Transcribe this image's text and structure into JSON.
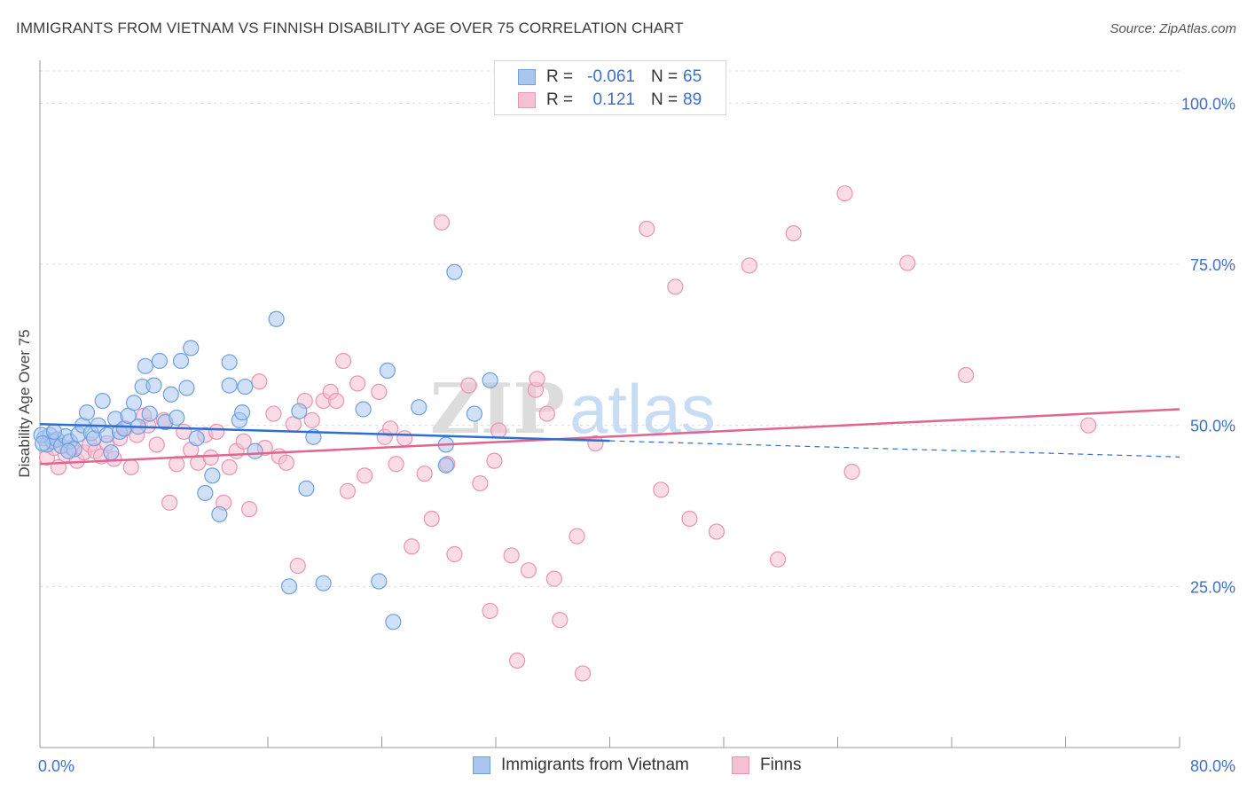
{
  "header": {
    "title": "IMMIGRANTS FROM VIETNAM VS FINNISH DISABILITY AGE OVER 75 CORRELATION CHART",
    "source": "Source: ZipAtlas.com"
  },
  "watermark": {
    "zip": "ZIP",
    "atlas": "atlas"
  },
  "stats": [
    {
      "r_label": "R =",
      "r_value": "-0.061",
      "n_label": "N =",
      "n_value": "65"
    },
    {
      "r_label": "R =",
      "r_value": "0.121",
      "n_label": "N =",
      "n_value": "89"
    }
  ],
  "legend": {
    "series_a": "Immigrants from Vietnam",
    "series_b": "Finns"
  },
  "colors": {
    "blue_fill": "#a9c6ee",
    "blue_stroke": "#6f9fe0",
    "blue_line": "#2f6fd0",
    "pink_fill": "#f6bfd2",
    "pink_stroke": "#ea93b2",
    "pink_line": "#e0668f",
    "tick_text": "#3d6fc9",
    "grid": "#dcdcdc"
  },
  "chart_data": {
    "type": "scatter",
    "title": "IMMIGRANTS FROM VIETNAM VS FINNISH DISABILITY AGE OVER 75 CORRELATION CHART",
    "xlabel": "",
    "ylabel": "Disability Age Over 75",
    "xlim": [
      0,
      80
    ],
    "ylim": [
      0,
      105
    ],
    "x_tick_labels": [
      "0.0%",
      "80.0%"
    ],
    "y_ticks": [
      25,
      50,
      75,
      100
    ],
    "y_tick_labels": [
      "25.0%",
      "50.0%",
      "75.0%",
      "100.0%"
    ],
    "series": [
      {
        "name": "Immigrants from Vietnam",
        "r": -0.061,
        "n": 65,
        "trend": {
          "x": [
            0,
            40
          ],
          "y": [
            50.2,
            47.6
          ],
          "dashed_to": [
            80,
            45.1
          ]
        },
        "points": [
          [
            0.3,
            48.0
          ],
          [
            0.5,
            47.0
          ],
          [
            0.7,
            48.5
          ],
          [
            0.9,
            47.5
          ],
          [
            1.2,
            47.8
          ],
          [
            1.5,
            46.8
          ],
          [
            1.8,
            48.3
          ],
          [
            2.1,
            47.5
          ],
          [
            2.4,
            46.3
          ],
          [
            2.7,
            48.6
          ],
          [
            3.0,
            50.0
          ],
          [
            3.3,
            52.0
          ],
          [
            3.6,
            48.8
          ],
          [
            3.8,
            48.0
          ],
          [
            4.1,
            50.0
          ],
          [
            4.4,
            53.8
          ],
          [
            4.7,
            48.5
          ],
          [
            5.0,
            45.8
          ],
          [
            5.3,
            51.0
          ],
          [
            5.6,
            49.0
          ],
          [
            5.9,
            49.5
          ],
          [
            6.2,
            51.5
          ],
          [
            6.6,
            53.5
          ],
          [
            6.9,
            49.8
          ],
          [
            7.2,
            56.0
          ],
          [
            7.4,
            59.2
          ],
          [
            7.7,
            51.8
          ],
          [
            8.0,
            56.2
          ],
          [
            8.4,
            60.0
          ],
          [
            8.8,
            50.5
          ],
          [
            9.2,
            54.8
          ],
          [
            9.6,
            51.2
          ],
          [
            9.9,
            60.0
          ],
          [
            10.3,
            55.8
          ],
          [
            10.6,
            62.0
          ],
          [
            11.0,
            48.0
          ],
          [
            11.6,
            39.5
          ],
          [
            12.1,
            42.2
          ],
          [
            12.6,
            36.2
          ],
          [
            13.3,
            59.8
          ],
          [
            13.3,
            56.2
          ],
          [
            14.0,
            50.8
          ],
          [
            14.2,
            52.0
          ],
          [
            14.4,
            56.0
          ],
          [
            15.1,
            46.0
          ],
          [
            16.6,
            66.5
          ],
          [
            17.5,
            25.0
          ],
          [
            18.2,
            52.2
          ],
          [
            18.7,
            40.2
          ],
          [
            19.2,
            48.2
          ],
          [
            19.9,
            25.5
          ],
          [
            22.7,
            52.5
          ],
          [
            23.8,
            25.8
          ],
          [
            24.4,
            58.5
          ],
          [
            24.8,
            19.5
          ],
          [
            26.6,
            52.8
          ],
          [
            28.5,
            47.0
          ],
          [
            28.5,
            43.8
          ],
          [
            29.1,
            73.8
          ],
          [
            30.5,
            51.8
          ],
          [
            31.6,
            57.0
          ],
          [
            0.1,
            48.5
          ],
          [
            0.2,
            47.2
          ],
          [
            1.0,
            49.0
          ],
          [
            2.0,
            46.0
          ]
        ]
      },
      {
        "name": "Finns",
        "r": 0.121,
        "n": 89,
        "trend": {
          "x": [
            0,
            80
          ],
          "y": [
            44.0,
            52.5
          ]
        },
        "points": [
          [
            0.5,
            45.0
          ],
          [
            1.0,
            46.5
          ],
          [
            1.3,
            43.5
          ],
          [
            1.8,
            45.5
          ],
          [
            2.2,
            46.5
          ],
          [
            2.6,
            44.5
          ],
          [
            3.1,
            45.8
          ],
          [
            3.5,
            47.0
          ],
          [
            3.9,
            46.0
          ],
          [
            4.3,
            45.2
          ],
          [
            4.7,
            47.2
          ],
          [
            5.2,
            44.8
          ],
          [
            5.6,
            48.0
          ],
          [
            6.0,
            49.5
          ],
          [
            6.4,
            43.5
          ],
          [
            6.8,
            48.5
          ],
          [
            7.3,
            51.5
          ],
          [
            7.6,
            50.0
          ],
          [
            8.2,
            47.0
          ],
          [
            8.7,
            50.8
          ],
          [
            9.1,
            38.0
          ],
          [
            9.6,
            44.0
          ],
          [
            10.1,
            49.0
          ],
          [
            10.6,
            46.2
          ],
          [
            11.1,
            44.2
          ],
          [
            11.6,
            48.5
          ],
          [
            12.0,
            45.0
          ],
          [
            12.4,
            49.0
          ],
          [
            12.9,
            38.0
          ],
          [
            13.3,
            43.5
          ],
          [
            13.8,
            46.0
          ],
          [
            14.3,
            47.5
          ],
          [
            14.7,
            37.0
          ],
          [
            15.4,
            56.8
          ],
          [
            15.8,
            46.5
          ],
          [
            16.4,
            51.8
          ],
          [
            16.8,
            45.2
          ],
          [
            17.3,
            44.2
          ],
          [
            17.8,
            50.2
          ],
          [
            18.1,
            28.2
          ],
          [
            18.6,
            53.8
          ],
          [
            19.1,
            50.8
          ],
          [
            19.9,
            53.8
          ],
          [
            20.4,
            55.2
          ],
          [
            20.8,
            53.8
          ],
          [
            21.3,
            60.0
          ],
          [
            21.6,
            39.8
          ],
          [
            22.3,
            56.5
          ],
          [
            22.8,
            42.2
          ],
          [
            23.8,
            55.2
          ],
          [
            24.2,
            48.2
          ],
          [
            24.6,
            49.5
          ],
          [
            25.0,
            44.0
          ],
          [
            25.6,
            48.0
          ],
          [
            26.1,
            31.2
          ],
          [
            27.0,
            42.5
          ],
          [
            27.5,
            35.5
          ],
          [
            28.2,
            81.5
          ],
          [
            28.6,
            44.0
          ],
          [
            29.1,
            30.0
          ],
          [
            30.1,
            56.2
          ],
          [
            30.9,
            41.0
          ],
          [
            31.6,
            21.2
          ],
          [
            31.9,
            44.5
          ],
          [
            32.2,
            49.2
          ],
          [
            33.1,
            29.8
          ],
          [
            33.5,
            13.5
          ],
          [
            34.3,
            27.5
          ],
          [
            34.8,
            55.5
          ],
          [
            35.6,
            51.8
          ],
          [
            36.1,
            26.2
          ],
          [
            36.5,
            19.8
          ],
          [
            37.7,
            32.8
          ],
          [
            38.1,
            11.5
          ],
          [
            39.0,
            47.2
          ],
          [
            42.6,
            80.5
          ],
          [
            43.6,
            40.0
          ],
          [
            44.6,
            71.5
          ],
          [
            45.6,
            35.5
          ],
          [
            47.5,
            33.5
          ],
          [
            49.8,
            74.8
          ],
          [
            51.8,
            29.2
          ],
          [
            52.9,
            79.8
          ],
          [
            56.5,
            86.0
          ],
          [
            57.0,
            42.8
          ],
          [
            60.9,
            75.2
          ],
          [
            65.0,
            57.8
          ],
          [
            73.6,
            50.0
          ],
          [
            34.9,
            57.2
          ]
        ]
      }
    ]
  }
}
